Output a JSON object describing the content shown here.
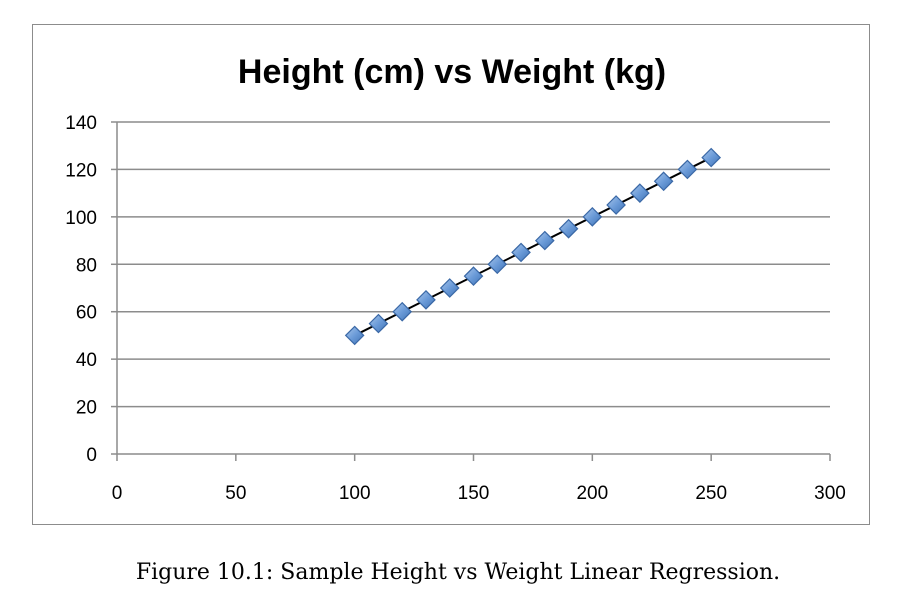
{
  "caption": "Figure 10.1: Sample Height vs Weight Linear Regression.",
  "chart_data": {
    "type": "scatter",
    "title": "Height (cm) vs Weight (kg)",
    "xlabel": "",
    "ylabel": "",
    "xlim": [
      0,
      300
    ],
    "ylim": [
      0,
      140
    ],
    "x_ticks": [
      0,
      50,
      100,
      150,
      200,
      250,
      300
    ],
    "y_ticks": [
      0,
      20,
      40,
      60,
      80,
      100,
      120,
      140
    ],
    "grid": "horizontal",
    "legend": "none",
    "series": [
      {
        "x": [
          100,
          110,
          120,
          130,
          140,
          150,
          160,
          170,
          180,
          190,
          200,
          210,
          220,
          230,
          240,
          250
        ],
        "y": [
          50,
          55,
          60,
          65,
          70,
          75,
          80,
          85,
          90,
          95,
          100,
          105,
          110,
          115,
          120,
          125
        ],
        "marker": "diamond",
        "color": "#4f81bd"
      }
    ],
    "trendline": {
      "type": "linear",
      "x": [
        100,
        250
      ],
      "y": [
        50,
        125
      ],
      "color": "#000000"
    }
  }
}
